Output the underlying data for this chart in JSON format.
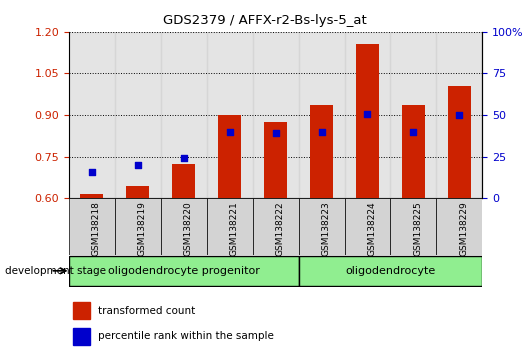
{
  "title": "GDS2379 / AFFX-r2-Bs-lys-5_at",
  "samples": [
    "GSM138218",
    "GSM138219",
    "GSM138220",
    "GSM138221",
    "GSM138222",
    "GSM138223",
    "GSM138224",
    "GSM138225",
    "GSM138229"
  ],
  "transformed_count": [
    0.615,
    0.645,
    0.725,
    0.9,
    0.875,
    0.935,
    1.155,
    0.935,
    1.005
  ],
  "percentile_rank": [
    0.695,
    0.72,
    0.745,
    0.84,
    0.835,
    0.84,
    0.905,
    0.84,
    0.9
  ],
  "ylim": [
    0.6,
    1.2
  ],
  "yticks_left": [
    0.6,
    0.75,
    0.9,
    1.05,
    1.2
  ],
  "yticks_right": [
    0,
    25,
    50,
    75,
    100
  ],
  "bar_color": "#cc2200",
  "dot_color": "#0000cc",
  "groups": [
    {
      "label": "oligodendrocyte progenitor",
      "start": 0,
      "end": 5,
      "color": "#90ee90"
    },
    {
      "label": "oligodendrocyte",
      "start": 5,
      "end": 9,
      "color": "#90ee90"
    }
  ],
  "ytick_label_color_left": "#cc2200",
  "ytick_label_color_right": "#0000cc",
  "base": 0.6,
  "bar_width": 0.5,
  "legend_labels": [
    "transformed count",
    "percentile rank within the sample"
  ],
  "legend_colors": [
    "#cc2200",
    "#0000cc"
  ],
  "dev_stage_label": "development stage",
  "col_bg_color": "#d3d3d3",
  "grid_color": "black"
}
